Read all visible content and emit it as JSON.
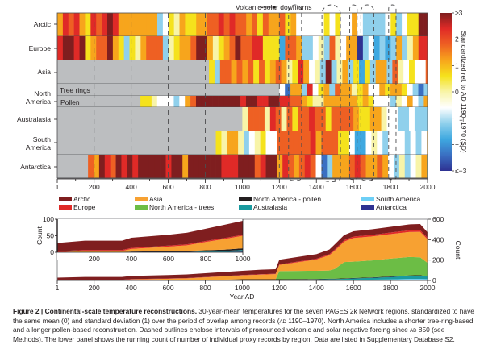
{
  "chart_data": [
    {
      "type": "heatmap",
      "title": "",
      "annotation": "Volcanic-solar downturns",
      "xlabel": "",
      "x_ticks": [
        "1",
        "200",
        "400",
        "600",
        "800",
        "1000",
        "1200",
        "1400",
        "1600",
        "1800",
        "2000"
      ],
      "xlim": [
        1,
        2000
      ],
      "bin_years": 30,
      "colorbar": {
        "label": "Standardized rel. to AD 1190–1970 (SD)",
        "ticks": [
          "≥3",
          "2",
          "1",
          "0",
          "−1",
          "−2",
          "≤−3"
        ],
        "range": [
          -3,
          3
        ],
        "colors": [
          "#2e3192",
          "#3a6fc2",
          "#3ea8e0",
          "#8fd0ec",
          "#ffffff",
          "#f8f4a8",
          "#f5e21c",
          "#f7a51c",
          "#ee6023",
          "#e02a27",
          "#7f1e1f"
        ]
      },
      "no_data_color": "#bcbec0",
      "volcanic_solar_intervals": [
        [
          1250,
          1320
        ],
        [
          1430,
          1530
        ],
        [
          1580,
          1620
        ],
        [
          1640,
          1710
        ],
        [
          1790,
          1830
        ]
      ],
      "pre850_dashes": [
        200,
        400,
        600,
        800,
        1200
      ],
      "rows": [
        {
          "name": "Arctic",
          "start": 1,
          "values": [
            1.2,
            2.2,
            1.7,
            2.3,
            1.0,
            0.8,
            2.2,
            1.5,
            2.6,
            2.8,
            2.3,
            1.0,
            1.1,
            1.2,
            1.0,
            0.9,
            1.1,
            1.3,
            -1.1,
            -0.5,
            0.5,
            0.2,
            0.9,
            0.4,
            0.6,
            1.0,
            1.2,
            2.0,
            1.7,
            2.2,
            1.5,
            2.2,
            2.0,
            1.8,
            1.0,
            1.5,
            0.8,
            1.7,
            0.9,
            1.4,
            2.0,
            0.8,
            1.3,
            -0.5,
            -0.7,
            -0.6,
            -0.9,
            -0.8,
            0.8,
            -0.9,
            0.5,
            -0.9,
            -0.6,
            0.9,
            -0.9,
            -1.1,
            -1.0,
            -1.3,
            -1.2,
            -0.9,
            0.5,
            -1.0,
            -0.8,
            0.6,
            0.4,
            2.8,
            3.0
          ]
        },
        {
          "name": "Europe",
          "start": 1,
          "values": [
            2.4,
            3.0,
            3.0,
            2.6,
            2.9,
            0.8,
            1.1,
            2.0,
            1.8,
            2.9,
            1.4,
            0.6,
            -1.0,
            0.6,
            0.3,
            1.3,
            1.8,
            2.0,
            1.7,
            -1.5,
            0.3,
            0.5,
            1.0,
            1.4,
            1.5,
            2.8,
            3.0,
            1.4,
            0.0,
            0.6,
            1.1,
            1.8,
            2.8,
            1.6,
            2.0,
            2.6,
            2.3,
            0.6,
            0.5,
            0.4,
            -1.8,
            1.8,
            1.6,
            1.4,
            -1.0,
            -1.0,
            -0.9,
            0.0,
            -1.1,
            2.0,
            0.0,
            -0.9,
            0.9,
            1.1,
            -2.8,
            -1.0,
            -0.8,
            -1.6,
            -1.1,
            -1.9,
            -1.0,
            1.0,
            -1.0,
            0.0,
            1.4,
            2.6,
            2.6
          ]
        },
        {
          "name": "Asia",
          "start": 820,
          "values": [
            0.6,
            -1.1,
            1.6,
            1.7,
            1.2,
            1.5,
            1.1,
            2.0,
            0.8,
            1.6,
            0.6,
            1.3,
            2.0,
            0.9,
            0.3,
            0.5,
            2.4,
            1.0,
            -0.9,
            -0.3,
            -1.1,
            2.9,
            -1.1,
            0.1,
            1.0,
            -1.1,
            0.6,
            -1.6,
            0.4,
            -1.4,
            1.0,
            1.4,
            -1.2,
            1.6,
            0.0,
            -0.5,
            0.8,
            -0.5,
            -0.6,
            1.6,
            1.0,
            2.2,
            3.0
          ]
        },
        {
          "name": "North America - Tree rings",
          "start": 1200,
          "values": [
            -0.6,
            -2.5,
            1.0,
            1.2,
            -1.1,
            2.4,
            -0.8,
            0.6,
            1.3,
            -1.1,
            1.6,
            1.0,
            1.4,
            -0.3,
            0.4,
            1.2,
            -0.5,
            -0.9,
            1.0,
            0.7,
            1.3,
            1.1,
            0.8,
            -0.8,
            -1.1,
            -2.5,
            -1.0,
            -0.6,
            1.0,
            1.4,
            2.0
          ]
        },
        {
          "name": "North America - Pollen",
          "start": 450,
          "values": [
            0.5,
            0.8,
            0.3,
            -0.8,
            -0.9,
            -0.8,
            -1.0,
            -0.6,
            1.2,
            2.0,
            2.8,
            2.7,
            3.0,
            3.0,
            3.0,
            2.9,
            2.7,
            3.0,
            2.6,
            2.9,
            2.8,
            2.4,
            2.6,
            3.0,
            2.8,
            2.6,
            2.3,
            2.0,
            1.5,
            1.2,
            0.5,
            -0.3,
            0.2,
            1.0,
            1.1,
            1.0,
            1.3,
            1.0,
            1.2,
            0.6,
            1.0,
            0.7,
            -0.5,
            -0.7,
            -0.8,
            -1.2,
            0.3,
            -0.9,
            1.4,
            -0.9,
            -1.2,
            1.2,
            -0.6,
            -1.8,
            -2.2,
            -2.8,
            -1.3,
            -0.3,
            -1.0,
            -0.8,
            -2.0,
            0.6,
            1.2,
            -0.2
          ]
        },
        {
          "name": "Australasia",
          "start": 1000,
          "values": [
            0.0,
            1.6,
            1.8,
            2.0,
            0.3,
            2.2,
            1.5,
            0.0,
            1.6,
            0.8,
            1.8,
            1.8,
            2.5,
            2.0,
            1.6,
            0.4,
            1.5,
            2.0,
            1.8,
            1.5,
            0.9,
            0.5,
            0.6,
            1.0,
            1.1,
            0.3,
            -0.6,
            -0.9,
            -1.0,
            -1.2,
            -0.8,
            -1.0,
            -1.3,
            -1.5,
            -1.1,
            -1.0,
            -0.6,
            -0.9,
            -1.6,
            -0.9,
            -0.5,
            -0.4,
            1.0,
            0.7,
            3.0
          ]
        },
        {
          "name": "South America",
          "start": 857,
          "values": [
            0.5,
            0.2,
            0.9,
            1.3,
            0.0,
            -1.0,
            -0.6,
            0.3,
            0.4,
            -0.8,
            -0.5,
            1.5,
            1.8,
            1.6,
            1.9,
            1.5,
            1.7,
            2.2,
            1.4,
            1.5,
            2.0,
            1.5,
            0.7,
            0.8,
            -0.5,
            -2.0,
            -2.1,
            -0.6,
            0.0,
            -0.8,
            -1.0,
            -0.5,
            -0.9,
            -0.6,
            -1.0,
            -0.8,
            -1.1,
            -0.7,
            1.4,
            1.6,
            1.4,
            1.1,
            1.8,
            -0.6,
            -0.9,
            -1.1,
            -0.6,
            -0.5,
            1.7,
            1.8
          ]
        },
        {
          "name": "Antarctica",
          "start": 167,
          "values": [
            1.6,
            1.3,
            3.0,
            2.4,
            1.6,
            2.9,
            2.4,
            3.0,
            2.5,
            2.9,
            3.0,
            3.0,
            3.0,
            2.9,
            2.4,
            3.0,
            3.0,
            1.4,
            3.0,
            3.0,
            3.0,
            3.0,
            3.0,
            3.0,
            2.6,
            2.5,
            2.4,
            3.0,
            2.9,
            3.0,
            1.6,
            2.4,
            3.0,
            2.9,
            1.1,
            2.4,
            2.0,
            1.4,
            2.0,
            2.2,
            1.5,
            -0.8,
            -2.5,
            -1.1,
            0.9,
            1.1,
            1.4,
            1.6,
            2.2,
            1.5,
            1.3,
            0.9,
            1.7,
            1.2,
            -0.5,
            -1.0,
            0.2,
            -1.1,
            -0.6,
            0.3,
            1.4,
            -1.8,
            -2.0,
            -1.1,
            -1.0,
            -2.4,
            1.4,
            1.1,
            0.5
          ]
        }
      ]
    },
    {
      "type": "area",
      "title": "",
      "xlabel": "Year AD",
      "ylabel": "Count",
      "x_ticks": [
        "1",
        "200",
        "400",
        "600",
        "800",
        "1000",
        "1200",
        "1400",
        "1600",
        "1800",
        "2000"
      ],
      "xlim": [
        1,
        2000
      ],
      "ylim": [
        0,
        600
      ],
      "y_ticks": [
        "0",
        "200",
        "400",
        "600"
      ],
      "inset": {
        "xlim": [
          1,
          1000
        ],
        "ylim": [
          0,
          100
        ],
        "x_ticks": [
          "200",
          "400",
          "600",
          "800",
          "1000"
        ],
        "y_ticks": [
          "0",
          "50",
          "100"
        ],
        "ylabel": "Count"
      },
      "legend": [
        {
          "name": "Arctic",
          "color": "#7f1e1f"
        },
        {
          "name": "Europe",
          "color": "#e02a27"
        },
        {
          "name": "Asia",
          "color": "#f7a132"
        },
        {
          "name": "North America - trees",
          "color": "#6cbd45"
        },
        {
          "name": "North America - pollen",
          "color": "#231f20"
        },
        {
          "name": "Australasia",
          "color": "#1a9ba0"
        },
        {
          "name": "South America",
          "color": "#6dcff6"
        },
        {
          "name": "Antarctica",
          "color": "#2e3192"
        }
      ],
      "x": [
        1,
        150,
        350,
        400,
        600,
        700,
        800,
        900,
        1000,
        1100,
        1180,
        1200,
        1400,
        1470,
        1500,
        1550,
        1600,
        1700,
        1800,
        1900,
        1960,
        2000
      ],
      "series": [
        {
          "name": "Antarctica",
          "values": [
            0,
            0,
            0,
            1,
            1,
            1,
            1,
            1,
            2,
            2,
            2,
            2,
            2,
            3,
            3,
            3,
            3,
            4,
            4,
            5,
            5,
            5
          ]
        },
        {
          "name": "South America",
          "values": [
            0,
            0,
            0,
            0,
            0,
            0,
            0,
            0,
            0,
            0,
            0,
            0,
            0,
            0,
            0,
            1,
            2,
            4,
            6,
            10,
            10,
            8
          ]
        },
        {
          "name": "Australasia",
          "values": [
            0,
            0,
            0,
            0,
            0,
            0,
            2,
            3,
            5,
            5,
            5,
            5,
            8,
            10,
            10,
            12,
            15,
            18,
            24,
            30,
            32,
            25
          ]
        },
        {
          "name": "North America - pollen",
          "values": [
            0,
            0,
            0,
            1,
            2,
            3,
            3,
            4,
            5,
            5,
            5,
            5,
            5,
            5,
            5,
            5,
            5,
            5,
            5,
            5,
            5,
            5
          ]
        },
        {
          "name": "North America - trees",
          "values": [
            0,
            0,
            0,
            0,
            0,
            0,
            0,
            0,
            0,
            0,
            0,
            80,
            80,
            80,
            95,
            160,
            160,
            165,
            175,
            180,
            175,
            130
          ]
        },
        {
          "name": "Asia",
          "values": [
            0,
            4,
            4,
            8,
            14,
            17,
            25,
            32,
            38,
            45,
            50,
            60,
            110,
            150,
            180,
            200,
            230,
            235,
            240,
            245,
            250,
            230
          ]
        },
        {
          "name": "Europe",
          "values": [
            3,
            3,
            3,
            3,
            3,
            3,
            3,
            3,
            3,
            4,
            4,
            6,
            8,
            10,
            12,
            14,
            15,
            15,
            16,
            16,
            16,
            14
          ]
        },
        {
          "name": "Arctic",
          "values": [
            25,
            28,
            28,
            31,
            33,
            35,
            37,
            40,
            42,
            45,
            45,
            45,
            45,
            45,
            50,
            50,
            52,
            55,
            55,
            58,
            60,
            55
          ]
        }
      ]
    }
  ],
  "caption": {
    "bold": "Figure 2 | Continental-scale temperature reconstructions.",
    "text1": " 30-year-mean temperatures for the seven PAGES 2k Network regions, standardized to have the same mean (0) and standard deviation (1) over the period of overlap among records (",
    "ad1": "ad",
    "text2": " 1190–1970). North America includes a shorter tree-ring-based and a longer pollen-based reconstruction. Dashed outlines enclose intervals of pronounced volcanic and solar negative forcing since ",
    "ad2": "ad",
    "text3": " 850 (see Methods). The lower panel shows the running count of number of individual proxy records by region. Data are listed in Supplementary Database S2."
  },
  "labels": {
    "arctic": "Arctic",
    "europe": "Europe",
    "asia": "Asia",
    "north": "North",
    "america": "America",
    "tree_rings": "Tree rings",
    "pollen": "Pollen",
    "australasia": "Australasia",
    "south": "South",
    "antarctica": "Antarctica"
  }
}
